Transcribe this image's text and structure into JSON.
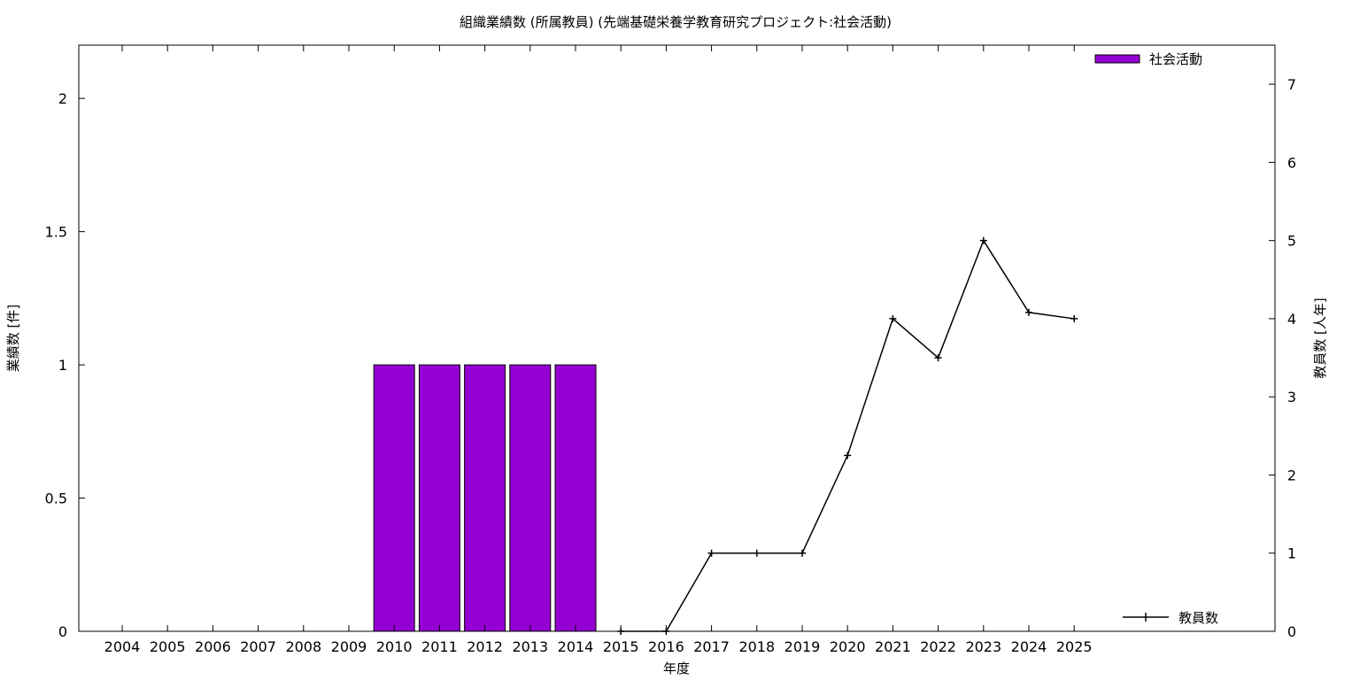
{
  "chart_data": {
    "type": "bar",
    "title": "組織業績数 (所属教員) (先端基礎栄養学教育研究プロジェクト:社会活動)",
    "xlabel": "年度",
    "ylabel": "業績数 [件]",
    "y2label": "教員数 [人年]",
    "categories": [
      "2004",
      "2005",
      "2006",
      "2007",
      "2008",
      "2009",
      "2010",
      "2011",
      "2012",
      "2013",
      "2014",
      "2015",
      "2016",
      "2017",
      "2018",
      "2019",
      "2020",
      "2021",
      "2022",
      "2023",
      "2024",
      "2025"
    ],
    "ylim": [
      0,
      2.2
    ],
    "y2lim": [
      0,
      7.5
    ],
    "yticks": [
      "0",
      "0.5",
      "1",
      "1.5",
      "2"
    ],
    "y2ticks": [
      "0",
      "1",
      "2",
      "3",
      "4",
      "5",
      "6",
      "7"
    ],
    "grid": false,
    "series": [
      {
        "name": "社会活動",
        "type": "bar",
        "axis": "left",
        "color": "#9400d3",
        "values": [
          0,
          0,
          0,
          0,
          0,
          0,
          1,
          1,
          1,
          1,
          1,
          0,
          0,
          0,
          0,
          0,
          0,
          0,
          0,
          0,
          0,
          0
        ]
      },
      {
        "name": "教員数",
        "type": "line",
        "axis": "right",
        "color": "#000000",
        "values": [
          null,
          null,
          null,
          null,
          null,
          null,
          null,
          null,
          null,
          null,
          null,
          0,
          0,
          1,
          1,
          1,
          2.25,
          4,
          3.5,
          5,
          4.08,
          4
        ]
      }
    ],
    "legend": {
      "bars": "top-right",
      "line": "bottom-right"
    }
  }
}
